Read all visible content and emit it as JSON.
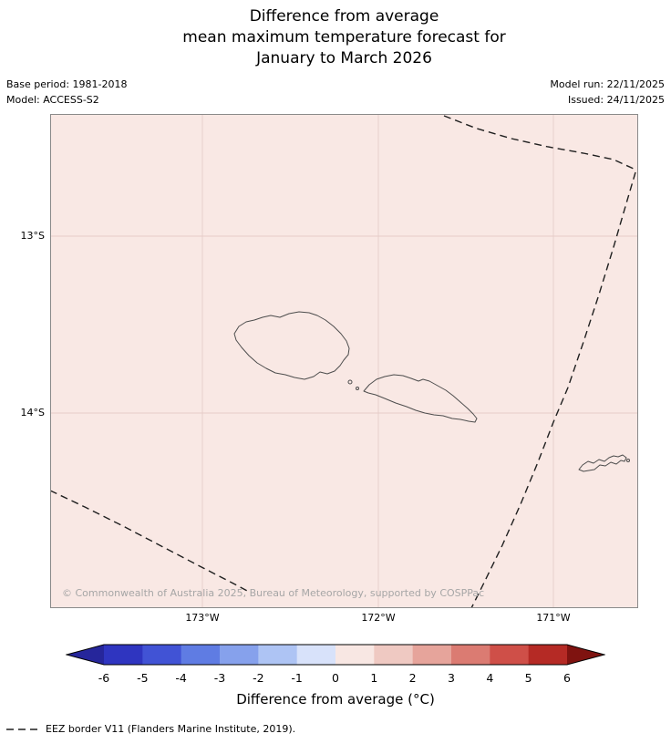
{
  "title": {
    "line1": "Difference from average",
    "line2": "mean maximum temperature forecast for",
    "line3": "January to March 2026"
  },
  "meta": {
    "base_period": "Base period: 1981-2018",
    "model": "Model: ACCESS-S2",
    "model_run": "Model run: 22/11/2025",
    "issued": "Issued: 24/11/2025"
  },
  "map": {
    "background_color": "#f9e8e4",
    "grid_color": "#e6cdc9",
    "coast_color": "#4d4d4d",
    "eez_color": "#1f1f1f",
    "border_color": "#8a8a8a",
    "y_ticks": [
      "13°S",
      "14°S"
    ],
    "x_ticks": [
      "173°W",
      "172°W",
      "171°W"
    ],
    "copyright": "© Commonwealth of Australia 2025, Bureau of Meteorology, supported by COSPPac"
  },
  "colorbar": {
    "label": "Difference from average (°C)",
    "ticks": [
      "-6",
      "-5",
      "-4",
      "-3",
      "-2",
      "-1",
      "0",
      "1",
      "2",
      "3",
      "4",
      "5",
      "6"
    ],
    "left_arrow_color": "#26269b",
    "right_arrow_color": "#7f1310",
    "segment_colors": [
      "#2f35c0",
      "#4153d5",
      "#5f7ce3",
      "#86a1ec",
      "#aec4f4",
      "#d8e2fa",
      "#f8e7e3",
      "#efc9c2",
      "#e6a49b",
      "#db7b72",
      "#cf4f48",
      "#b52a25"
    ]
  },
  "legend": {
    "eez_label": "EEZ border V11 (Flanders Marine Institute, 2019)."
  }
}
